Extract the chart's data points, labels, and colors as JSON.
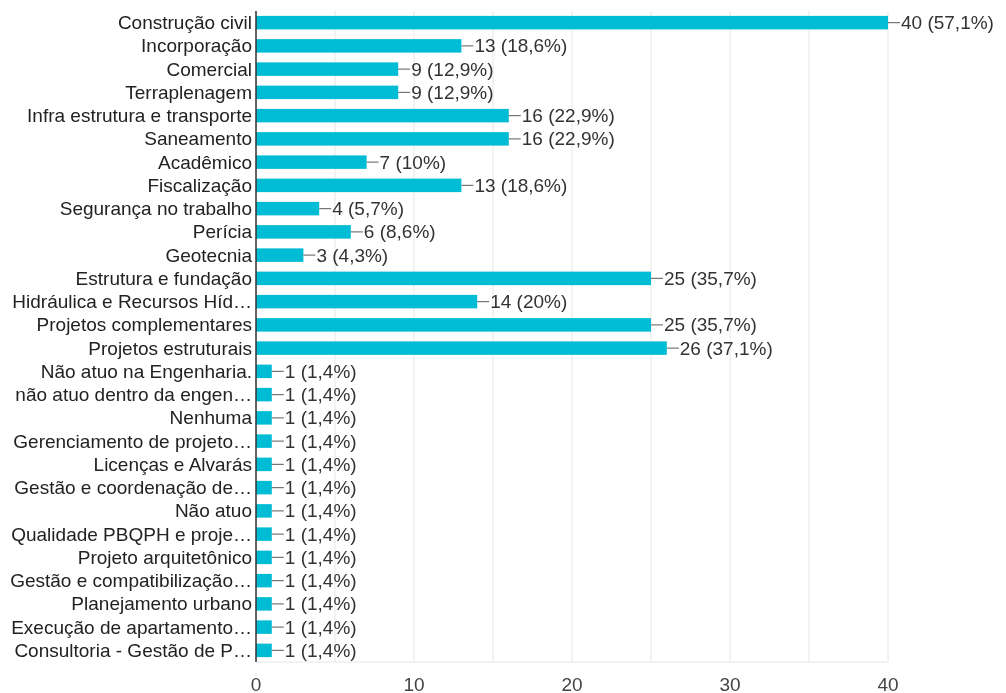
{
  "chart_data": {
    "type": "bar",
    "orientation": "horizontal",
    "color": "#00bcd4",
    "categories": [
      "Construção civil",
      "Incorporação",
      "Comercial",
      "Terraplenagem",
      "Infra estrutura e transporte",
      "Saneamento",
      "Acadêmico",
      "Fiscalização",
      "Segurança no trabalho",
      "Perícia",
      "Geotecnia",
      "Estrutura e fundação",
      "Hidráulica e Recursos Híd…",
      "Projetos complementares",
      "Projetos estruturais",
      "Não atuo na Engenharia.",
      "não atuo dentro da engen…",
      "Nenhuma",
      "Gerenciamento de projeto…",
      "Licenças e Alvarás",
      "Gestão e coordenação de…",
      "Não atuo",
      "Qualidade PBQPH e proje…",
      "Projeto arquitetônico",
      "Gestão e compatibilização…",
      "Planejamento urbano",
      "Execução de apartamento…",
      "Consultoria - Gestão de P…"
    ],
    "values": [
      40,
      13,
      9,
      9,
      16,
      16,
      7,
      13,
      4,
      6,
      3,
      25,
      14,
      25,
      26,
      1,
      1,
      1,
      1,
      1,
      1,
      1,
      1,
      1,
      1,
      1,
      1,
      1
    ],
    "value_labels": [
      "40 (57,1%)",
      "13 (18,6%)",
      "9 (12,9%)",
      "9 (12,9%)",
      "16 (22,9%)",
      "16 (22,9%)",
      "7 (10%)",
      "13 (18,6%)",
      "4 (5,7%)",
      "6 (8,6%)",
      "3 (4,3%)",
      "25 (35,7%)",
      "14 (20%)",
      "25 (35,7%)",
      "26 (37,1%)",
      "1 (1,4%)",
      "1 (1,4%)",
      "1 (1,4%)",
      "1 (1,4%)",
      "1 (1,4%)",
      "1 (1,4%)",
      "1 (1,4%)",
      "1 (1,4%)",
      "1 (1,4%)",
      "1 (1,4%)",
      "1 (1,4%)",
      "1 (1,4%)",
      "1 (1,4%)"
    ],
    "xlim": [
      0,
      40
    ],
    "xticks": [
      0,
      {
        "value": 5,
        "label": null
      },
      10,
      {
        "value": 15,
        "label": null
      },
      20,
      {
        "value": 25,
        "label": null
      },
      30,
      {
        "value": 35,
        "label": null
      },
      40
    ],
    "grid": "x"
  }
}
